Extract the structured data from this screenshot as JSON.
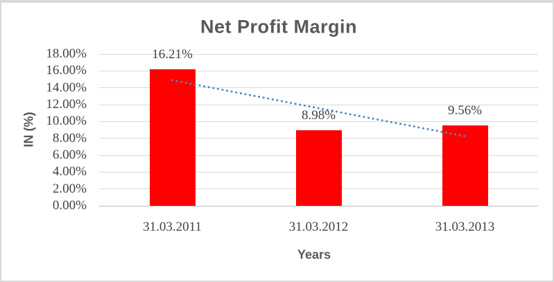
{
  "window": {
    "background": "#FFFFFF",
    "border_color": "#D8D8D8"
  },
  "chart_data": {
    "type": "bar",
    "title": "Net Profit Margin",
    "xlabel": "Years",
    "ylabel": "IN (%)",
    "categories": [
      "31.03.2011",
      "31.03.2012",
      "31.03.2013"
    ],
    "values": [
      16.21,
      8.98,
      9.56
    ],
    "data_labels": [
      "16.21%",
      "8.98%",
      "9.56%"
    ],
    "ylim": [
      0,
      18
    ],
    "ytick_step": 2,
    "ytick_labels": [
      "0.00%",
      "2.00%",
      "4.00%",
      "6.00%",
      "8.00%",
      "10.00%",
      "12.00%",
      "14.00%",
      "16.00%",
      "18.00%"
    ],
    "grid": true,
    "legend": "none",
    "bar_color": "#FF0000",
    "trendline": {
      "type": "linear",
      "style": "dotted",
      "color": "#4E87C6",
      "start_value": 14.9,
      "end_value": 8.25
    }
  },
  "colors": {
    "title_text": "#595959",
    "axis_title_text": "#595959",
    "tick_label_text": "#424242",
    "gridline": "#D9D9D9",
    "axis_line": "#BFBFBF"
  }
}
